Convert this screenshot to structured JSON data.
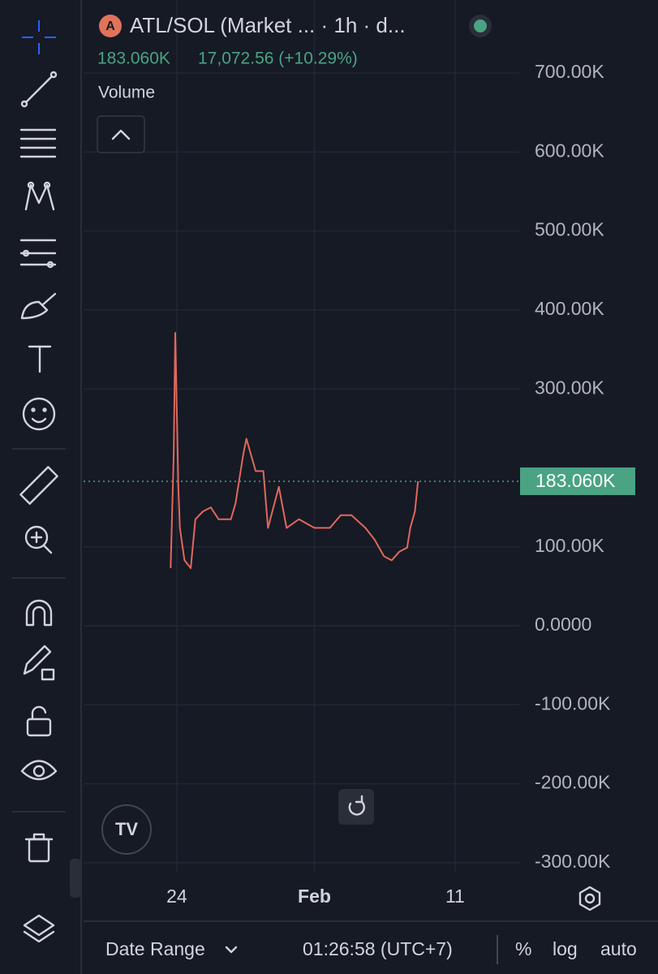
{
  "header": {
    "title": "ATL/SOL (Market ... · 1h · d...",
    "price": "183.060K",
    "change": "17,072.56 (+10.29%)",
    "indicator": "Volume"
  },
  "chart_data": {
    "type": "line",
    "color": "#e0685c",
    "grid": true,
    "x": [
      -0.4,
      -0.2,
      -0.1,
      0.1,
      0.2,
      0.5,
      0.9,
      1.2,
      1.7,
      2.2,
      2.7,
      3.5,
      3.8,
      4.3,
      4.5,
      5.1,
      5.6,
      5.9,
      6.6,
      7.1,
      7.9,
      8.9,
      9.9,
      10.6,
      11.3,
      12.2,
      12.8,
      13.4,
      13.9,
      14.4,
      14.9,
      15.1,
      15.4,
      15.6
    ],
    "values": [
      73000,
      217000,
      371000,
      176000,
      124000,
      83000,
      73000,
      135000,
      145000,
      150000,
      135000,
      135000,
      155000,
      217000,
      237000,
      196000,
      196000,
      124000,
      176000,
      124000,
      135000,
      124000,
      124000,
      140000,
      140000,
      124000,
      109000,
      88000,
      83000,
      94000,
      99000,
      124000,
      145000,
      183060
    ],
    "xlim": [
      -6.03,
      22.15
    ],
    "xticks": [
      {
        "value": 0,
        "label": "24"
      },
      {
        "value": 8.9,
        "label": "Feb"
      },
      {
        "value": 18,
        "label": "11"
      }
    ],
    "ylim": [
      -312400,
      792500
    ],
    "yticks": [
      {
        "value": 700000,
        "label": "700.00K"
      },
      {
        "value": 600000,
        "label": "600.00K"
      },
      {
        "value": 500000,
        "label": "500.00K"
      },
      {
        "value": 400000,
        "label": "400.00K"
      },
      {
        "value": 300000,
        "label": "300.00K"
      },
      {
        "value": 100000,
        "label": "100.00K"
      },
      {
        "value": 0,
        "label": "0.0000"
      },
      {
        "value": -100000,
        "label": "-100.00K"
      },
      {
        "value": -200000,
        "label": "-200.00K"
      },
      {
        "value": -300000,
        "label": "-300.00K"
      }
    ],
    "last": {
      "value": 183060,
      "label": "183.060K",
      "color": "#4aa383"
    }
  },
  "footer": {
    "date_range": "Date Range",
    "time": "01:26:58 (UTC+7)",
    "percent": "%",
    "log": "log",
    "auto": "auto"
  }
}
